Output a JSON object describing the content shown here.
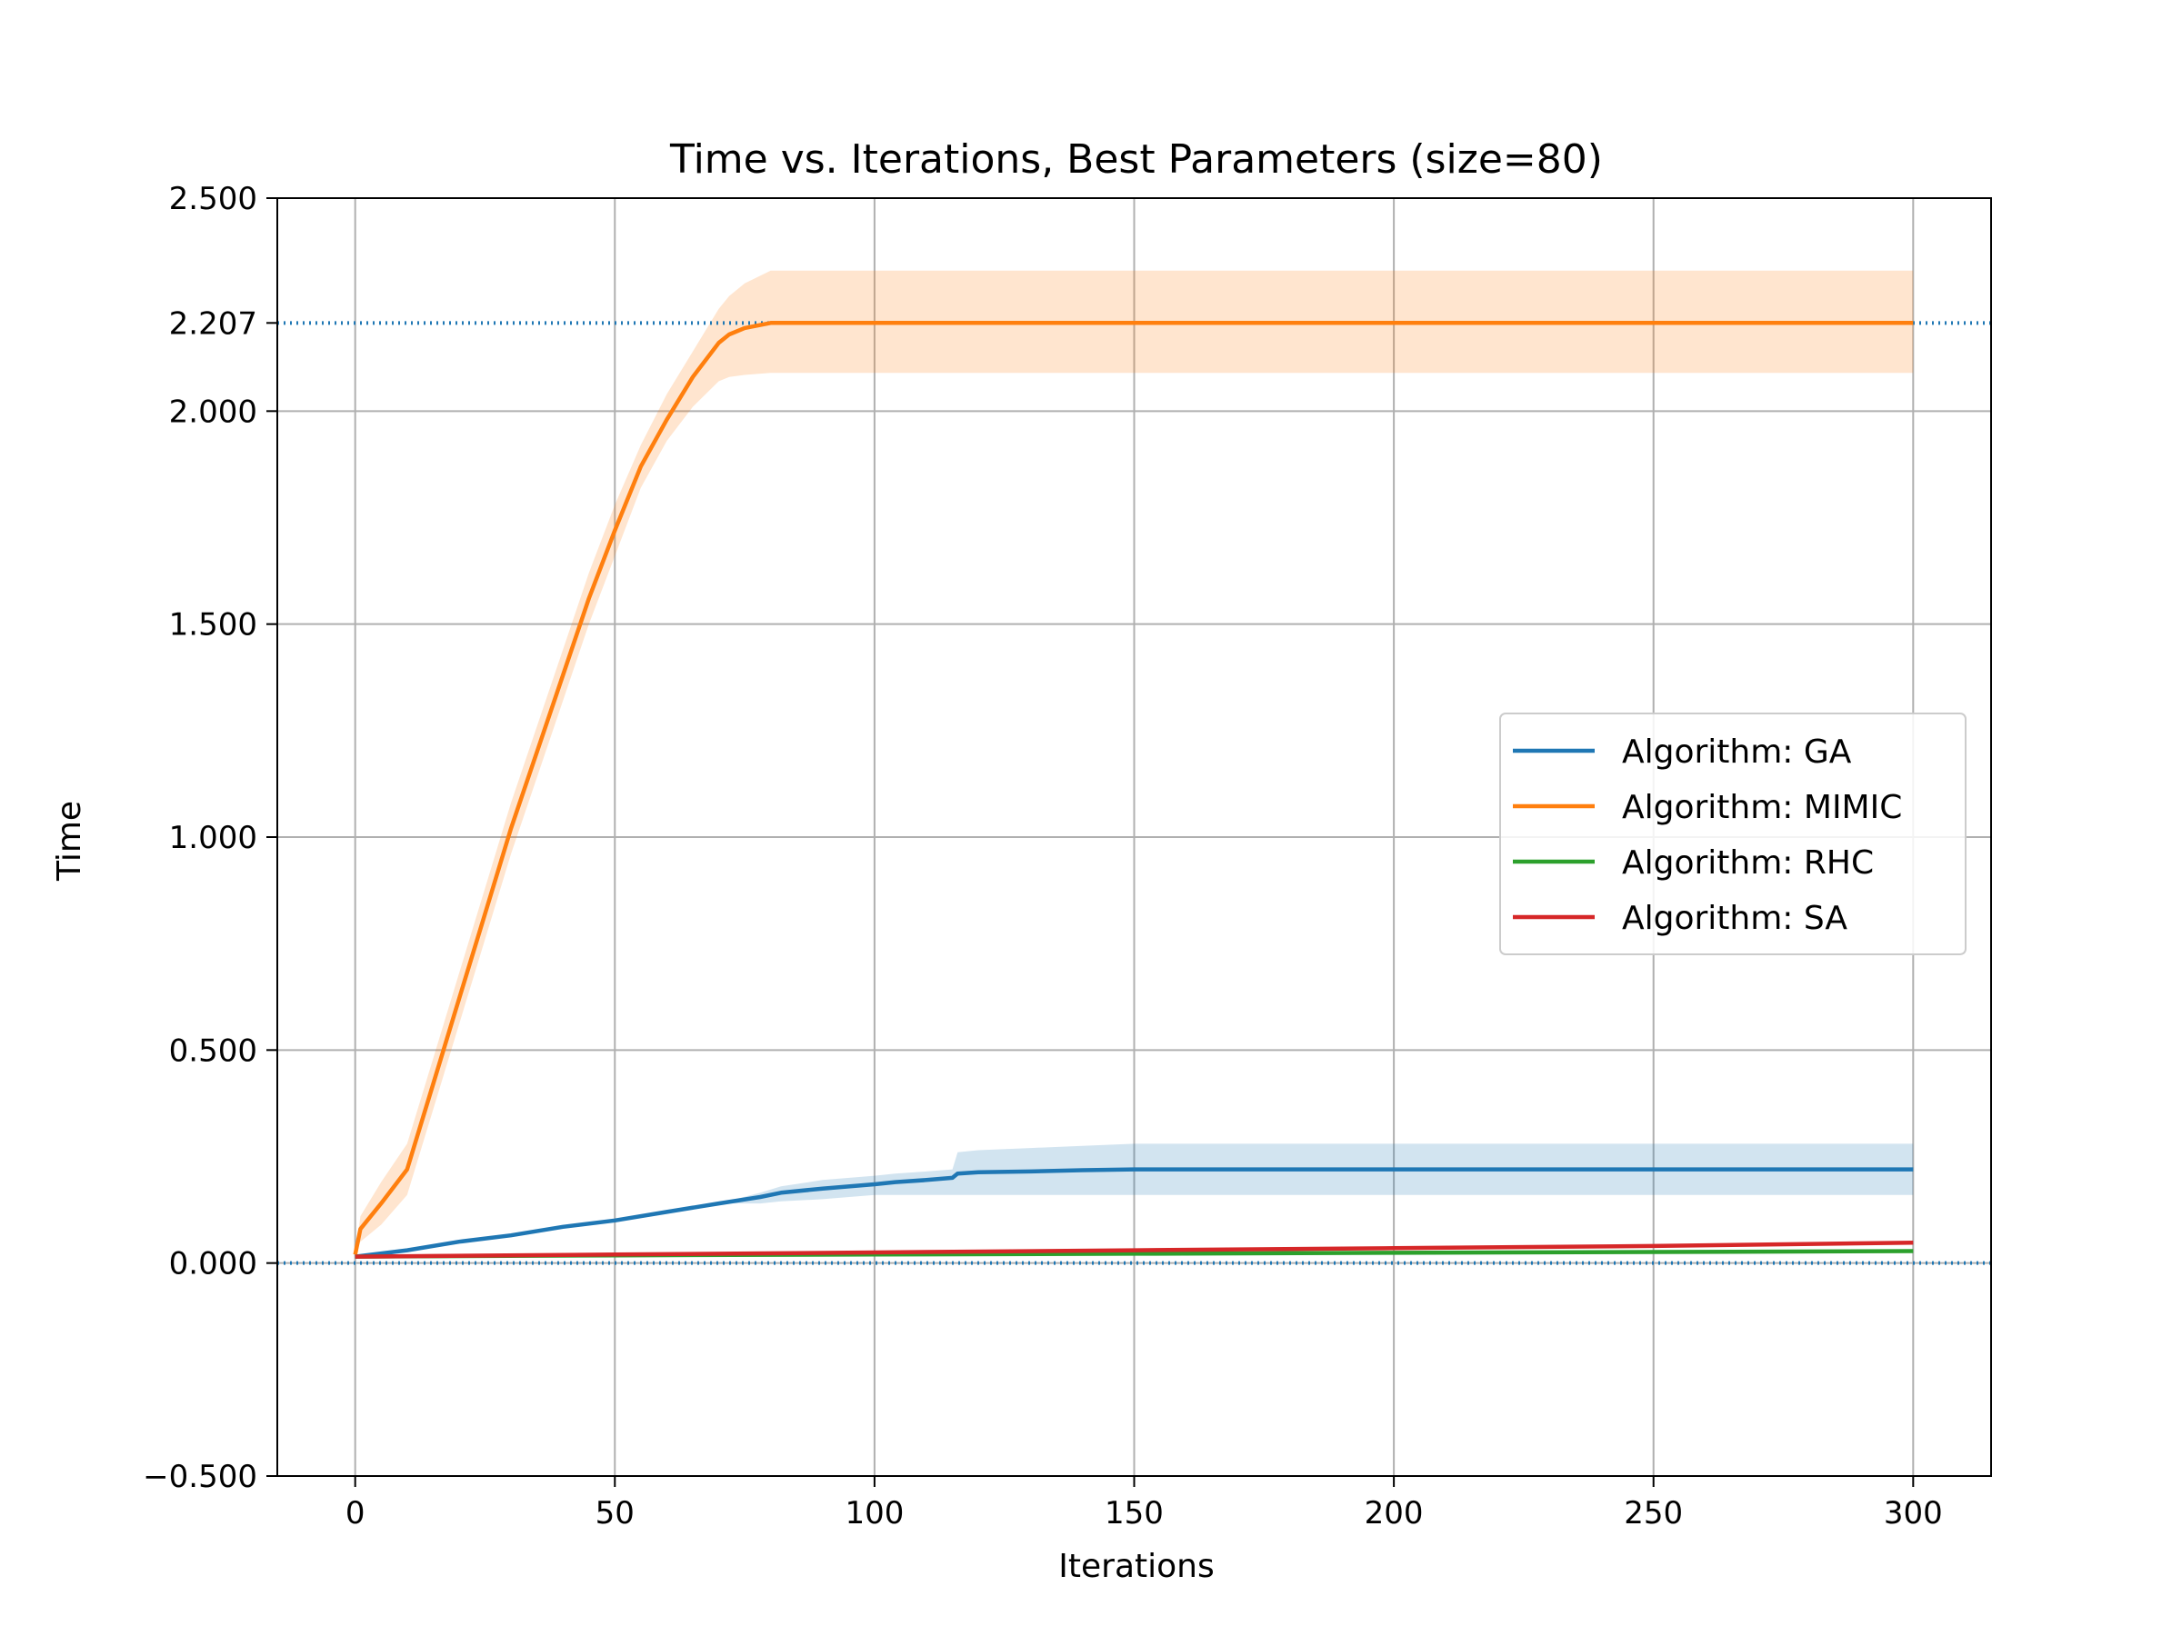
{
  "chart_data": {
    "type": "line",
    "title": "Time vs. Iterations, Best Parameters (size=80)",
    "xlabel": "Iterations",
    "ylabel": "Time",
    "xlim": [
      -15,
      315
    ],
    "ylim": [
      -0.5,
      2.5
    ],
    "xticks": [
      0,
      50,
      100,
      150,
      200,
      250,
      300
    ],
    "xtick_labels": [
      "0",
      "50",
      "100",
      "150",
      "200",
      "250",
      "300"
    ],
    "yticks": [
      -0.5,
      0.0,
      0.5,
      1.0,
      1.5,
      2.0,
      2.207,
      2.5
    ],
    "ytick_labels": [
      "−0.500",
      "0.000",
      "0.500",
      "1.000",
      "1.500",
      "2.000",
      "2.207",
      "2.500"
    ],
    "grid": true,
    "legend_position": "center-right",
    "reference_lines": [
      {
        "y": 2.207,
        "style": "dotted",
        "color": "#1f77b4"
      },
      {
        "y": 0.0,
        "style": "dotted",
        "color": "#1f77b4"
      }
    ],
    "series": [
      {
        "name": "Algorithm: GA",
        "color": "#1f77b4",
        "band_color": "#1f77b4",
        "x": [
          0,
          10,
          20,
          30,
          40,
          50,
          60,
          70,
          78,
          82,
          90,
          100,
          104,
          110,
          115,
          116,
          120,
          130,
          140,
          150,
          200,
          250,
          300
        ],
        "y": [
          0.015,
          0.03,
          0.05,
          0.065,
          0.085,
          0.1,
          0.12,
          0.14,
          0.155,
          0.165,
          0.175,
          0.185,
          0.19,
          0.195,
          0.2,
          0.21,
          0.213,
          0.215,
          0.218,
          0.22,
          0.22,
          0.22,
          0.22
        ],
        "lower": [
          0.015,
          0.03,
          0.05,
          0.065,
          0.085,
          0.1,
          0.12,
          0.14,
          0.14,
          0.145,
          0.15,
          0.16,
          0.16,
          0.16,
          0.16,
          0.16,
          0.16,
          0.16,
          0.16,
          0.16,
          0.16,
          0.16,
          0.16
        ],
        "upper": [
          0.015,
          0.03,
          0.05,
          0.065,
          0.085,
          0.1,
          0.12,
          0.14,
          0.165,
          0.18,
          0.195,
          0.205,
          0.21,
          0.215,
          0.22,
          0.26,
          0.265,
          0.27,
          0.275,
          0.28,
          0.28,
          0.28,
          0.28
        ]
      },
      {
        "name": "Algorithm: MIMIC",
        "color": "#ff7f0e",
        "band_color": "#ff7f0e",
        "x": [
          0,
          1,
          5,
          10,
          15,
          20,
          25,
          30,
          35,
          40,
          45,
          50,
          55,
          60,
          65,
          70,
          72,
          75,
          80,
          100,
          150,
          200,
          250,
          300
        ],
        "y": [
          0.02,
          0.08,
          0.14,
          0.22,
          0.42,
          0.62,
          0.82,
          1.02,
          1.2,
          1.38,
          1.56,
          1.72,
          1.87,
          1.98,
          2.08,
          2.16,
          2.18,
          2.195,
          2.207,
          2.207,
          2.207,
          2.207,
          2.207,
          2.207
        ],
        "lower": [
          0.02,
          0.05,
          0.09,
          0.16,
          0.36,
          0.56,
          0.76,
          0.96,
          1.14,
          1.32,
          1.5,
          1.66,
          1.82,
          1.93,
          2.01,
          2.07,
          2.08,
          2.085,
          2.09,
          2.09,
          2.09,
          2.09,
          2.09,
          2.09
        ],
        "upper": [
          0.02,
          0.11,
          0.19,
          0.28,
          0.48,
          0.68,
          0.88,
          1.08,
          1.26,
          1.44,
          1.62,
          1.78,
          1.92,
          2.04,
          2.14,
          2.24,
          2.27,
          2.3,
          2.33,
          2.33,
          2.33,
          2.33,
          2.33,
          2.33
        ]
      },
      {
        "name": "Algorithm: RHC",
        "color": "#2ca02c",
        "x": [
          0,
          50,
          100,
          150,
          200,
          250,
          300
        ],
        "y": [
          0.015,
          0.018,
          0.02,
          0.022,
          0.024,
          0.026,
          0.028
        ]
      },
      {
        "name": "Algorithm: SA",
        "color": "#d62728",
        "x": [
          0,
          50,
          100,
          150,
          200,
          250,
          300
        ],
        "y": [
          0.015,
          0.02,
          0.025,
          0.03,
          0.035,
          0.04,
          0.048
        ]
      }
    ]
  }
}
